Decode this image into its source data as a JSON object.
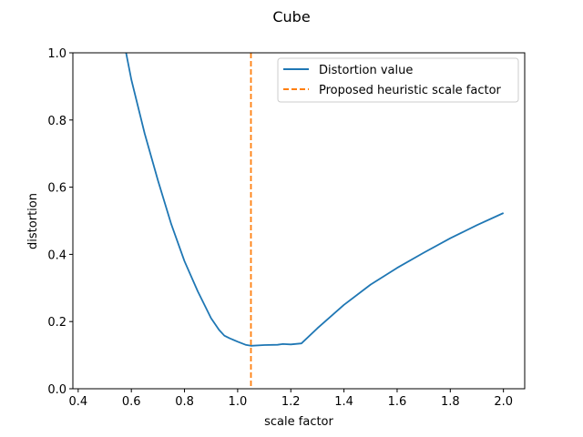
{
  "chart_data": {
    "type": "line",
    "title": "Cube",
    "xlabel": "scale factor",
    "ylabel": "distortion",
    "xlim": [
      0.38,
      2.08
    ],
    "ylim": [
      0.0,
      1.0
    ],
    "xticks": [
      0.4,
      0.6,
      0.8,
      1.0,
      1.2,
      1.4,
      1.6,
      1.8,
      2.0
    ],
    "xtick_labels": [
      "0.4",
      "0.6",
      "0.8",
      "1.0",
      "1.2",
      "1.4",
      "1.6",
      "1.8",
      "2.0"
    ],
    "yticks": [
      0.0,
      0.2,
      0.4,
      0.6,
      0.8,
      1.0
    ],
    "ytick_labels": [
      "0.0",
      "0.2",
      "0.4",
      "0.6",
      "0.8",
      "1.0"
    ],
    "grid": false,
    "legend_position": "upper-right",
    "series": [
      {
        "name": "Distortion value",
        "color": "#1f77b4",
        "style": "solid",
        "x": [
          0.58,
          0.6,
          0.65,
          0.7,
          0.75,
          0.8,
          0.85,
          0.9,
          0.93,
          0.95,
          0.97,
          1.0,
          1.03,
          1.05,
          1.1,
          1.15,
          1.17,
          1.2,
          1.24,
          1.3,
          1.4,
          1.5,
          1.6,
          1.7,
          1.8,
          1.9,
          2.0
        ],
        "y": [
          1.0,
          0.92,
          0.76,
          0.62,
          0.49,
          0.38,
          0.29,
          0.21,
          0.175,
          0.158,
          0.15,
          0.14,
          0.131,
          0.128,
          0.13,
          0.131,
          0.133,
          0.132,
          0.135,
          0.18,
          0.25,
          0.31,
          0.36,
          0.405,
          0.448,
          0.487,
          0.523
        ]
      },
      {
        "name": "Proposed heuristic scale factor",
        "color": "#ff7f0e",
        "style": "dashed",
        "vertical_x": 1.05
      }
    ]
  }
}
